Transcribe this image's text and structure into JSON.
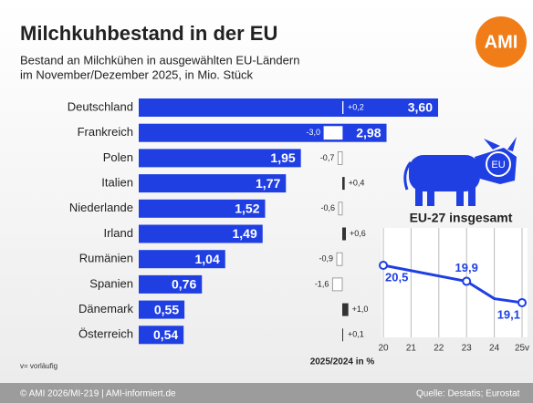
{
  "chart_data": {
    "type": "bar",
    "title": "Milchkuhbestand in der EU",
    "subtitle_lines": [
      "Bestand an Milchkühen in ausgewählten EU-Ländern",
      "im November/Dezember 2025, in Mio. Stück"
    ],
    "logo": "AMI",
    "categories": [
      "Deutschland",
      "Frankreich",
      "Polen",
      "Italien",
      "Niederlande",
      "Irland",
      "Rumänien",
      "Spanien",
      "Dänemark",
      "Österreich"
    ],
    "values": [
      3.6,
      2.98,
      1.95,
      1.77,
      1.52,
      1.49,
      1.04,
      0.76,
      0.55,
      0.54
    ],
    "value_labels": [
      "3,60",
      "2,98",
      "1,95",
      "1,77",
      "1,52",
      "1,49",
      "1,04",
      "0,76",
      "0,55",
      "0,54"
    ],
    "color": "#1f3fe3",
    "xlim": [
      0,
      3.6
    ],
    "change_values": [
      0.2,
      -3.0,
      -0.7,
      0.4,
      -0.6,
      0.6,
      -0.9,
      -1.6,
      1.0,
      0.1
    ],
    "change_labels": [
      "+0,2",
      "-3,0",
      "-0,7",
      "+0,4",
      "-0,6",
      "+0,6",
      "-0,9",
      "-1,6",
      "+1,0",
      "+0,1"
    ],
    "change_xlim": [
      -6,
      6
    ],
    "change_axis_label": "2025/2024 in %",
    "note": "v= vorläufig",
    "footer_left": "© AMI 2026/MI-219 | AMI-informiert.de",
    "footer_right": "Quelle: Destatis; Eurostat",
    "cow_label": "EU",
    "inset": {
      "type": "line",
      "title": "EU-27 insgesamt",
      "x": [
        20,
        23,
        24,
        25
      ],
      "values": [
        20.5,
        19.9,
        19.25,
        19.1
      ],
      "value_labels": [
        "20,5",
        "19,9",
        null,
        "19,1"
      ],
      "color": "#1f3fe3",
      "xlim": [
        20,
        25
      ],
      "xticks": [
        20,
        21,
        22,
        23,
        24,
        {
          "value": 25,
          "label": "25v"
        }
      ],
      "ylim": [
        17.8,
        21.9
      ],
      "grid": true
    }
  }
}
